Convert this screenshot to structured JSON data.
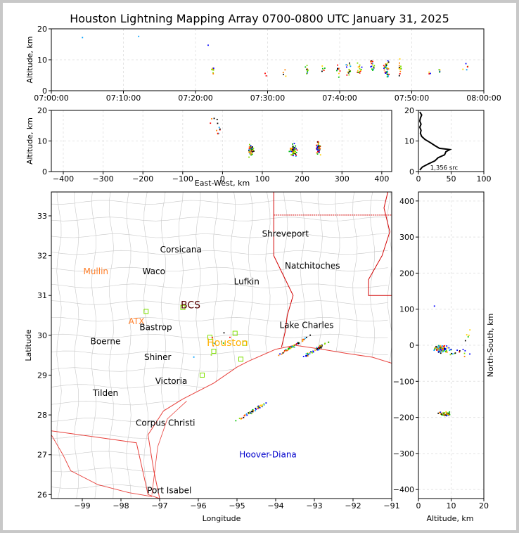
{
  "title": "Houston Lightning Mapping Array 0700-0800 UTC January 31, 2025",
  "colors": {
    "frame": "#c8c8c8",
    "coast": "#e8413c",
    "state": "#d20000",
    "county": "#c8c8c8",
    "source_ramp": [
      "#0000ff",
      "#00a0ff",
      "#00c000",
      "#80e000",
      "#ffd000",
      "#ff8000",
      "#ff0000",
      "#000000"
    ]
  },
  "chart_data": [
    {
      "name": "time-height",
      "type": "scatter",
      "xlabel": "",
      "ylabel": "Altitude, km",
      "xticks": [
        "07:00:00",
        "07:10:00",
        "07:20:00",
        "07:30:00",
        "07:40:00",
        "07:50:00",
        "08:00:00"
      ],
      "xlim_minutes": [
        0,
        60
      ],
      "ylim": [
        0,
        20
      ],
      "yticks": [
        0,
        10,
        20
      ],
      "grid": true,
      "clusters": [
        {
          "t": 4.3,
          "alt": 17,
          "n": 1,
          "st": 0.1,
          "sa": 0.2
        },
        {
          "t": 12,
          "alt": 17.5,
          "n": 1,
          "st": 0.1,
          "sa": 0.2
        },
        {
          "t": 21.8,
          "alt": 14.5,
          "n": 1,
          "st": 0.1,
          "sa": 0.2
        },
        {
          "t": 22.4,
          "alt": 7,
          "n": 12,
          "st": 0.15,
          "sa": 1.2
        },
        {
          "t": 29.8,
          "alt": 5,
          "n": 2,
          "st": 0.2,
          "sa": 1.5
        },
        {
          "t": 32.3,
          "alt": 6,
          "n": 4,
          "st": 0.2,
          "sa": 1.2
        },
        {
          "t": 35.5,
          "alt": 6.5,
          "n": 10,
          "st": 0.2,
          "sa": 1.5
        },
        {
          "t": 37.7,
          "alt": 6.5,
          "n": 6,
          "st": 0.2,
          "sa": 1.3
        },
        {
          "t": 39.8,
          "alt": 6.5,
          "n": 10,
          "st": 0.2,
          "sa": 1.8
        },
        {
          "t": 41.3,
          "alt": 7,
          "n": 16,
          "st": 0.3,
          "sa": 1.8
        },
        {
          "t": 42.8,
          "alt": 7,
          "n": 14,
          "st": 0.3,
          "sa": 1.8
        },
        {
          "t": 44.5,
          "alt": 7.5,
          "n": 16,
          "st": 0.4,
          "sa": 2
        },
        {
          "t": 46.5,
          "alt": 7.5,
          "n": 34,
          "st": 0.25,
          "sa": 2.3
        },
        {
          "t": 48.3,
          "alt": 7.5,
          "n": 12,
          "st": 0.2,
          "sa": 2
        },
        {
          "t": 52.5,
          "alt": 5.5,
          "n": 3,
          "st": 0.2,
          "sa": 0.8
        },
        {
          "t": 53.8,
          "alt": 6.5,
          "n": 4,
          "st": 0.2,
          "sa": 1.2
        },
        {
          "t": 57.5,
          "alt": 8,
          "n": 6,
          "st": 0.4,
          "sa": 1
        }
      ]
    },
    {
      "name": "east-west-altitude",
      "type": "scatter",
      "xlabel": "East-West, km",
      "ylabel": "Altitude, km",
      "xlim": [
        -430,
        425
      ],
      "xticks": [
        -400,
        -300,
        -200,
        -100,
        0,
        100,
        200,
        300,
        400
      ],
      "ylim": [
        0,
        20
      ],
      "yticks": [
        0,
        10,
        20
      ],
      "grid": true,
      "clusters": [
        {
          "x": -15,
          "alt": 15,
          "n": 12,
          "sx": 18,
          "sa": 3
        },
        {
          "x": 72,
          "alt": 7,
          "n": 45,
          "sx": 6,
          "sa": 1.6
        },
        {
          "x": 178,
          "alt": 7,
          "n": 60,
          "sx": 7,
          "sa": 1.5
        },
        {
          "x": 240,
          "alt": 8,
          "n": 55,
          "sx": 5,
          "sa": 1.8
        }
      ]
    },
    {
      "name": "altitude-histogram",
      "type": "line",
      "xlabel": "",
      "ylabel": "",
      "xlim": [
        0,
        100
      ],
      "xticks": [
        0,
        50,
        100
      ],
      "ylim": [
        0,
        20
      ],
      "yticks": [
        0,
        10,
        20
      ],
      "grid": true,
      "annotation": "1,356 src",
      "series": [
        {
          "alt": [
            0.5,
            1.5,
            2.5,
            3.5,
            4.5,
            5.5,
            6.5,
            7.2,
            7.6,
            8.5,
            9.5,
            10.5,
            11.5,
            12.5,
            13.5,
            14.5,
            15.5,
            16.5,
            17.5,
            18.5,
            19.5
          ],
          "count": [
            2,
            6,
            15,
            25,
            30,
            40,
            42,
            48,
            32,
            25,
            18,
            10,
            5,
            3,
            4,
            2,
            4,
            2,
            3,
            5,
            2
          ]
        }
      ]
    },
    {
      "name": "plan-view-map",
      "type": "scatter",
      "xlabel": "Longitude",
      "ylabel": "Latitude",
      "xlim": [
        -99.8,
        -91
      ],
      "xticks": [
        -99,
        -98,
        -97,
        -96,
        -95,
        -94,
        -93,
        -92,
        -91
      ],
      "ylim": [
        25.9,
        33.6
      ],
      "yticks": [
        26,
        27,
        28,
        29,
        30,
        31,
        32,
        33
      ],
      "cities": [
        {
          "name": "Shreveport",
          "lon": -93.75,
          "lat": 32.55,
          "color": "#000000"
        },
        {
          "name": "Corsicana",
          "lon": -96.45,
          "lat": 32.15,
          "color": "#000000"
        },
        {
          "name": "Mullin",
          "lon": -98.65,
          "lat": 31.6,
          "color": "#ff7f2a"
        },
        {
          "name": "Waco",
          "lon": -97.15,
          "lat": 31.6,
          "color": "#000000"
        },
        {
          "name": "Natchitoches",
          "lon": -93.05,
          "lat": 31.75,
          "color": "#000000"
        },
        {
          "name": "Lufkin",
          "lon": -94.75,
          "lat": 31.35,
          "color": "#000000"
        },
        {
          "name": "BCS",
          "lon": -96.2,
          "lat": 30.75,
          "color": "#550000"
        },
        {
          "name": "ATX",
          "lon": -97.6,
          "lat": 30.35,
          "color": "#ff7f2a"
        },
        {
          "name": "Bastrop",
          "lon": -97.1,
          "lat": 30.2,
          "color": "#000000"
        },
        {
          "name": "Lake Charles",
          "lon": -93.2,
          "lat": 30.25,
          "color": "#000000"
        },
        {
          "name": "Boerne",
          "lon": -98.4,
          "lat": 29.85,
          "color": "#000000"
        },
        {
          "name": "Houston",
          "lon": -95.25,
          "lat": 29.8,
          "color": "#ffb000"
        },
        {
          "name": "Shiner",
          "lon": -97.05,
          "lat": 29.45,
          "color": "#000000"
        },
        {
          "name": "Victoria",
          "lon": -96.7,
          "lat": 28.85,
          "color": "#000000"
        },
        {
          "name": "Tilden",
          "lon": -98.4,
          "lat": 28.55,
          "color": "#000000"
        },
        {
          "name": "Corpus Christi",
          "lon": -96.85,
          "lat": 27.8,
          "color": "#000000"
        },
        {
          "name": "Hoover-Diana",
          "lon": -94.2,
          "lat": 27.0,
          "color": "#0000cc"
        },
        {
          "name": "Port Isabel",
          "lon": -96.75,
          "lat": 26.1,
          "color": "#000000"
        }
      ],
      "stations": [
        {
          "lon": -97.35,
          "lat": 30.6
        },
        {
          "lon": -96.4,
          "lat": 30.7
        },
        {
          "lon": -95.7,
          "lat": 29.95
        },
        {
          "lon": -95.6,
          "lat": 29.6
        },
        {
          "lon": -95.9,
          "lat": 29.0
        },
        {
          "lon": -94.9,
          "lat": 29.4
        },
        {
          "lon": -95.05,
          "lat": 30.05
        },
        {
          "lon": -94.8,
          "lat": 29.8
        }
      ],
      "clusters": [
        {
          "lon": -93.6,
          "lat": 29.7,
          "n": 55,
          "len": 0.35,
          "w": 0.03
        },
        {
          "lon": -92.95,
          "lat": 29.65,
          "n": 50,
          "len": 0.3,
          "w": 0.03
        },
        {
          "lon": -94.6,
          "lat": 28.1,
          "n": 45,
          "len": 0.3,
          "w": 0.03
        },
        {
          "lon": -95.5,
          "lat": 29.9,
          "n": 10,
          "len": 0.6,
          "w": 0.25
        }
      ]
    },
    {
      "name": "altitude-north-south",
      "type": "scatter",
      "xlabel": "Altitude, km",
      "ylabel": "North-South, km",
      "xlim": [
        0,
        20
      ],
      "xticks": [
        0,
        10,
        20
      ],
      "ylim": [
        -425,
        425
      ],
      "yticks": [
        -400,
        -300,
        -200,
        -100,
        0,
        100,
        200,
        300,
        400
      ],
      "grid": true,
      "clusters": [
        {
          "alt": 7,
          "y": -10,
          "n": 80,
          "sa": 1.8,
          "sy": 8
        },
        {
          "alt": 12,
          "y": -20,
          "n": 15,
          "sa": 3,
          "sy": 10
        },
        {
          "alt": 8,
          "y": -190,
          "n": 35,
          "sa": 1.6,
          "sy": 6
        },
        {
          "alt": 16,
          "y": 30,
          "n": 5,
          "sa": 2,
          "sy": 20
        },
        {
          "alt": 5,
          "y": 108,
          "n": 1,
          "sa": 0.2,
          "sy": 1
        }
      ]
    }
  ]
}
